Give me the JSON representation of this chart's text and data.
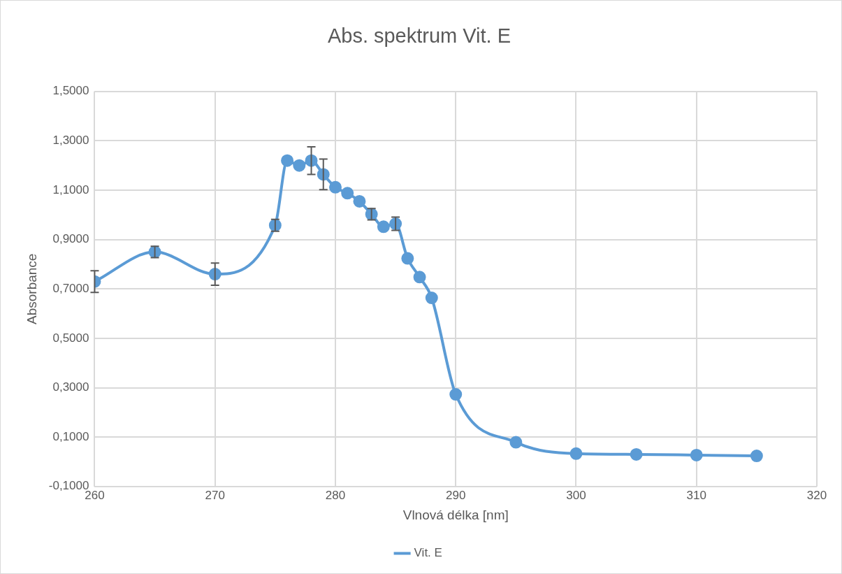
{
  "chart_data": {
    "type": "line",
    "title": "Abs. spektrum Vit. E",
    "xlabel": "Vlnová délka [nm]",
    "ylabel": "Absorbance",
    "x": [
      260,
      265,
      270,
      275,
      276,
      277,
      278,
      279,
      280,
      281,
      282,
      283,
      284,
      285,
      286,
      287,
      288,
      290,
      295,
      300,
      305,
      310,
      315
    ],
    "series": [
      {
        "name": "Vit. E",
        "color": "#5b9bd5",
        "values": [
          0.73,
          0.85,
          0.76,
          0.958,
          1.22,
          1.2,
          1.22,
          1.164,
          1.112,
          1.088,
          1.055,
          1.003,
          0.952,
          0.964,
          0.824,
          0.748,
          0.664,
          0.273,
          0.079,
          0.033,
          0.03,
          0.027,
          0.024
        ],
        "errors": [
          0.044,
          0.023,
          0.045,
          0.024,
          null,
          null,
          0.056,
          0.062,
          null,
          null,
          null,
          0.023,
          null,
          0.027,
          null,
          null,
          null,
          null,
          null,
          null,
          null,
          null,
          null
        ]
      }
    ],
    "xlim": [
      260,
      320
    ],
    "xticks": [
      260,
      270,
      280,
      290,
      300,
      310,
      320
    ],
    "ylim": [
      -0.1,
      1.5
    ],
    "yticks": [
      {
        "value": -0.1,
        "label": "-0,1000"
      },
      {
        "value": 0.1,
        "label": "0,1000"
      },
      {
        "value": 0.3,
        "label": "0,3000"
      },
      {
        "value": 0.5,
        "label": "0,5000"
      },
      {
        "value": 0.7,
        "label": "0,7000"
      },
      {
        "value": 0.9,
        "label": "0,9000"
      },
      {
        "value": 1.1,
        "label": "1,1000"
      },
      {
        "value": 1.3,
        "label": "1,3000"
      },
      {
        "value": 1.5,
        "label": "1,5000"
      }
    ],
    "grid": true,
    "legend": "bottom",
    "marker": "circle",
    "line_style": "solid"
  }
}
